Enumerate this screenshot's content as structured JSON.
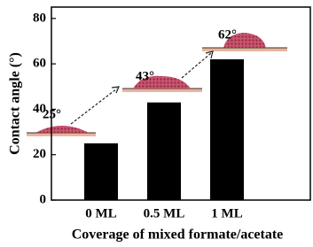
{
  "chart_data": {
    "type": "bar",
    "xlabel": "Coverage of mixed formate/acetate",
    "ylabel": "Contact angle (°)",
    "categories": [
      "0 ML",
      "0.5 ML",
      "1 ML"
    ],
    "values": [
      25,
      43,
      62
    ],
    "value_labels": [
      "25°",
      "43°",
      "62°"
    ],
    "color": "#000000",
    "ylim": [
      0,
      85
    ],
    "yticks": [
      0,
      20,
      40,
      60,
      80
    ]
  }
}
